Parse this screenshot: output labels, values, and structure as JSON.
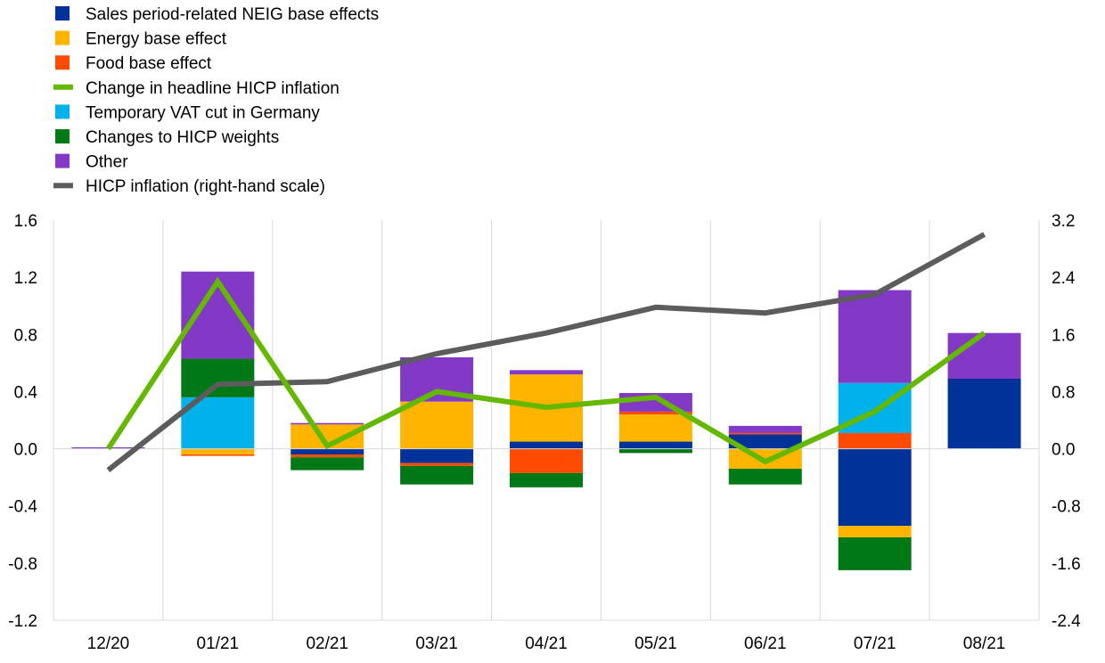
{
  "chart_data": {
    "type": "bar",
    "stacked": true,
    "categories": [
      "12/20",
      "01/21",
      "02/21",
      "03/21",
      "04/21",
      "05/21",
      "06/21",
      "07/21",
      "08/21"
    ],
    "y_left": {
      "ylim": [
        -1.2,
        1.6
      ],
      "ticks": [
        "1.6",
        "1.2",
        "0.8",
        "0.4",
        "0.0",
        "-0.4",
        "-0.8",
        "-1.2"
      ]
    },
    "y_right": {
      "ylim": [
        -2.4,
        3.2
      ],
      "ticks": [
        "3.2",
        "2.4",
        "1.6",
        "0.8",
        "0.0",
        "-0.8",
        "-1.6",
        "-2.4"
      ]
    },
    "grid": "vertical",
    "legend": "top-left",
    "bar_series": [
      {
        "name": "Sales period-related NEIG base effects",
        "color": "#003299",
        "values": [
          0,
          0,
          -0.04,
          -0.1,
          0.05,
          0.05,
          0.1,
          -0.54,
          0.49
        ]
      },
      {
        "name": "Energy base effect",
        "color": "#FFB400",
        "values": [
          0,
          -0.04,
          0.17,
          0.33,
          0.47,
          0.19,
          -0.14,
          -0.08,
          0
        ]
      },
      {
        "name": "Food base effect",
        "color": "#FF4B00",
        "values": [
          0,
          -0.01,
          -0.02,
          -0.02,
          -0.17,
          0.02,
          0.01,
          0.11,
          0
        ]
      },
      {
        "name": "Temporary VAT cut in Germany",
        "color": "#00B1EA",
        "values": [
          0,
          0.36,
          0,
          0,
          0,
          0,
          0,
          0.35,
          0
        ]
      },
      {
        "name": "Changes to HICP weights",
        "color": "#007816",
        "values": [
          0,
          0.27,
          -0.09,
          -0.13,
          -0.1,
          -0.03,
          -0.11,
          -0.23,
          0
        ]
      },
      {
        "name": "Other",
        "color": "#8139C6",
        "values": [
          0.01,
          0.61,
          0.01,
          0.31,
          0.03,
          0.13,
          0.05,
          0.65,
          0.32
        ]
      }
    ],
    "line_series": [
      {
        "name": "Change in headline HICP inflation",
        "color": "#65B800",
        "axis": "left",
        "values": [
          0.0,
          1.17,
          0.02,
          0.4,
          0.29,
          0.36,
          -0.09,
          0.26,
          0.81
        ]
      },
      {
        "name": "HICP inflation (right-hand scale)",
        "color": "#5C5C5C",
        "axis": "right",
        "values": [
          -0.3,
          0.9,
          0.94,
          1.33,
          1.62,
          1.98,
          1.9,
          2.16,
          3.0
        ]
      }
    ],
    "legend_order": [
      "Sales period-related NEIG base effects",
      "Energy base effect",
      "Food base effect",
      "Change in headline HICP inflation",
      "Temporary VAT cut in Germany",
      "Changes to HICP weights",
      "Other",
      "HICP inflation (right-hand scale)"
    ]
  }
}
